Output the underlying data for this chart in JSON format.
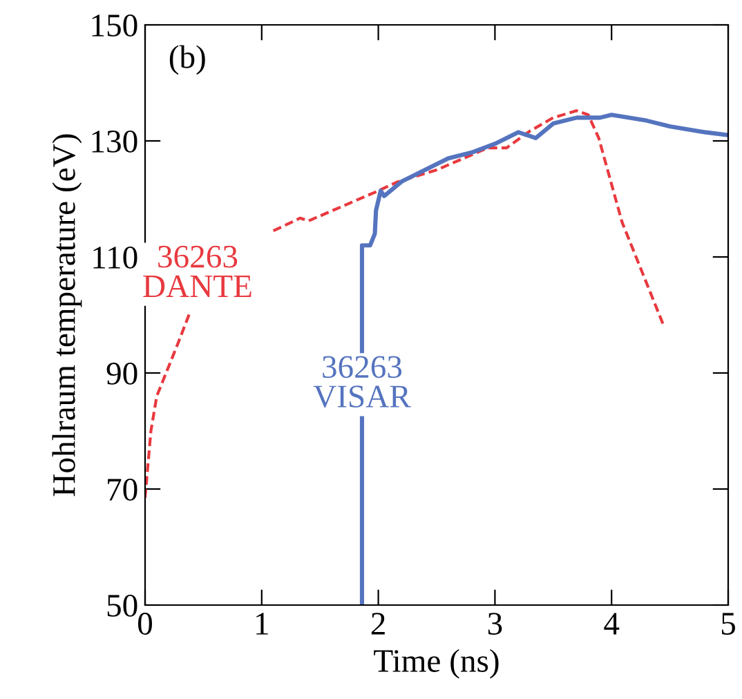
{
  "chart_data": {
    "type": "line",
    "xlabel": "Time (ns)",
    "ylabel": "Hohlraum temperature (eV)",
    "annotations": [
      "(b)"
    ],
    "xlim": [
      0,
      5
    ],
    "ylim": [
      50,
      150
    ],
    "xticks": [
      0,
      1,
      2,
      3,
      4,
      5
    ],
    "yticks": [
      50,
      70,
      90,
      110,
      130,
      150
    ],
    "grid": false,
    "legend": false,
    "series": [
      {
        "name": "36263\nDANTE",
        "color": "#e8393f",
        "line_style": "dashed",
        "x": [
          0,
          0.05,
          0.1,
          0.18,
          0.28,
          0.38,
          0.7,
          1.1,
          1.33,
          1.4,
          2.0,
          2.16,
          2.5,
          2.94,
          3.1,
          3.3,
          3.5,
          3.7,
          3.8,
          3.89,
          4.09,
          4.29,
          4.45
        ],
        "values": [
          68.5,
          80,
          86,
          90,
          95,
          100.2,
          null,
          114.5,
          116.7,
          116.2,
          121.4,
          122.9,
          125,
          128.8,
          128.8,
          131.7,
          134,
          135.2,
          134.5,
          130.5,
          116,
          106,
          98
        ]
      },
      {
        "name": "36263\nVISAR",
        "color": "#5574bf",
        "line_style": "solid",
        "x": [
          1.86,
          1.86,
          1.93,
          1.97,
          1.98,
          2.02,
          2.05,
          2.2,
          2.4,
          2.6,
          2.8,
          3.0,
          3.2,
          3.35,
          3.5,
          3.7,
          3.9,
          4.0,
          4.3,
          4.5,
          4.8,
          5.0
        ],
        "values": [
          50,
          112,
          112,
          114,
          118,
          121.4,
          120.5,
          123,
          125,
          127,
          128,
          129.5,
          131.5,
          130.5,
          133,
          134,
          134,
          134.5,
          133.5,
          132.5,
          131.5,
          131
        ]
      }
    ]
  }
}
